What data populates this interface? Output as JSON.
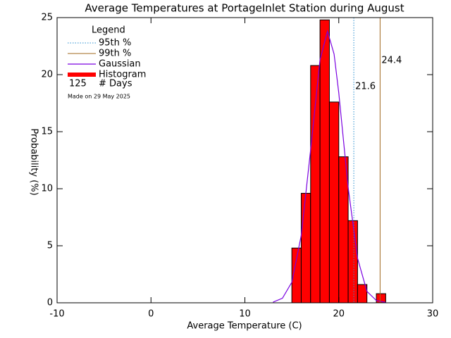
{
  "chart_data": {
    "type": "histogram",
    "title": "Average Temperatures at PortageInlet Station during August",
    "xlabel": "Average Temperature (C)",
    "ylabel": "Probability (%)",
    "bins": [
      15,
      16,
      17,
      18,
      19,
      20,
      21,
      22,
      23,
      24,
      25
    ],
    "values": [
      4.8,
      9.6,
      20.8,
      24.8,
      17.6,
      12.8,
      7.2,
      1.6,
      0,
      0.8
    ],
    "name": "Histogram",
    "color": "#ff0000",
    "xlim": [
      -10,
      30
    ],
    "ylim": [
      0,
      25
    ],
    "xticks": [
      -10,
      0,
      10,
      20,
      30
    ],
    "yticks": [
      0,
      5,
      10,
      15,
      20,
      25
    ],
    "gaussian": {
      "name": "Gaussian",
      "color": "#7a00e0",
      "x": [
        13,
        14,
        15,
        16,
        17,
        18,
        18.8,
        19.5,
        20,
        21,
        22,
        23,
        24,
        25
      ],
      "values": [
        0.06,
        0.4,
        1.8,
        5.9,
        13.4,
        21.3,
        23.8,
        21.8,
        18.4,
        10.1,
        3.9,
        1.0,
        0.2,
        0.03
      ]
    },
    "percentiles": [
      {
        "name": "95th %",
        "value": 21.6,
        "color": "#2a8fd0",
        "dash": true
      },
      {
        "name": "99th %",
        "value": 24.4,
        "color": "#a0681e",
        "dash": false
      }
    ],
    "legend": {
      "title": "Legend"
    },
    "days": {
      "value": 125,
      "label": "# Days"
    },
    "footnote": "Made on 29 May 2025"
  }
}
